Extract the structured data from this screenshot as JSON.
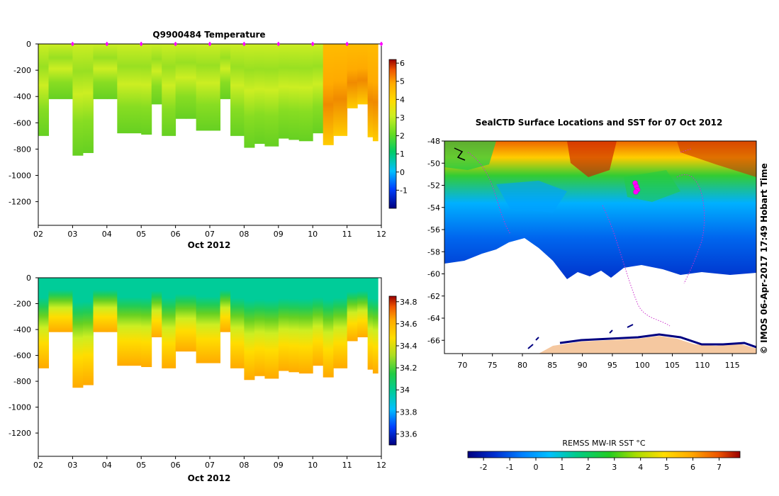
{
  "chart_data": [
    {
      "id": "temperature-section",
      "type": "heatmap",
      "title": "Q9900484  Temperature",
      "xlabel": "Oct 2012",
      "ylabel": "",
      "x_ticks": [
        "02",
        "03",
        "04",
        "05",
        "06",
        "07",
        "08",
        "09",
        "10",
        "11",
        "12"
      ],
      "x_range": [
        2,
        12
      ],
      "y_ticks": [
        0,
        -200,
        -400,
        -600,
        -800,
        -1000,
        -1200
      ],
      "ylim": [
        -1380,
        0
      ],
      "colorbar": {
        "min": -2,
        "max": 6.2,
        "ticks": [
          6,
          5,
          4,
          3,
          2,
          1,
          0,
          -1
        ]
      },
      "profile_days": [
        2.0,
        2.3,
        2.6,
        3.0,
        3.3,
        3.6,
        4.0,
        4.3,
        4.6,
        5.0,
        5.3,
        5.6,
        6.0,
        6.3,
        6.6,
        7.0,
        7.3,
        7.6,
        8.0,
        8.3,
        8.6,
        9.0,
        9.3,
        9.6,
        10.0,
        10.3,
        10.6,
        11.0,
        11.3,
        11.6,
        11.75
      ],
      "profile_max_depth": [
        700,
        420,
        420,
        850,
        830,
        420,
        420,
        680,
        680,
        690,
        460,
        700,
        570,
        570,
        660,
        660,
        420,
        700,
        790,
        760,
        780,
        720,
        730,
        740,
        680,
        770,
        700,
        490,
        460,
        710,
        740
      ],
      "surface_markers_days": [
        3.0,
        4.0,
        5.0,
        6.0,
        7.0,
        8.0,
        9.0,
        10.0,
        11.0,
        12.0
      ]
    },
    {
      "id": "salinity-section",
      "type": "heatmap",
      "title": "",
      "xlabel": "Oct 2012",
      "ylabel": "",
      "x_ticks": [
        "02",
        "03",
        "04",
        "05",
        "06",
        "07",
        "08",
        "09",
        "10",
        "11",
        "12"
      ],
      "x_range": [
        2,
        12
      ],
      "y_ticks": [
        0,
        -200,
        -400,
        -600,
        -800,
        -1000,
        -1200
      ],
      "ylim": [
        -1380,
        0
      ],
      "colorbar": {
        "min": 33.5,
        "max": 34.85,
        "ticks": [
          34.8,
          34.6,
          34.4,
          34.2,
          34,
          33.8,
          33.6
        ]
      },
      "profile_days": [
        2.0,
        2.3,
        2.6,
        3.0,
        3.3,
        3.6,
        4.0,
        4.3,
        4.6,
        5.0,
        5.3,
        5.6,
        6.0,
        6.3,
        6.6,
        7.0,
        7.3,
        7.6,
        8.0,
        8.3,
        8.6,
        9.0,
        9.3,
        9.6,
        10.0,
        10.3,
        10.6,
        11.0,
        11.3,
        11.6,
        11.75
      ],
      "profile_max_depth": [
        700,
        420,
        420,
        850,
        830,
        420,
        420,
        680,
        680,
        690,
        460,
        700,
        570,
        570,
        660,
        660,
        420,
        700,
        790,
        760,
        780,
        720,
        730,
        740,
        680,
        770,
        700,
        490,
        460,
        710,
        740
      ]
    },
    {
      "id": "sst-map",
      "type": "heatmap",
      "title": "SealCTD Surface Locations and SST for 07 Oct 2012",
      "xlabel": "",
      "ylabel": "",
      "x_ticks": [
        70,
        75,
        80,
        85,
        90,
        95,
        100,
        105,
        110,
        115
      ],
      "xlim": [
        67,
        119
      ],
      "y_ticks": [
        -48,
        -50,
        -52,
        -54,
        -56,
        -58,
        -60,
        -62,
        -64,
        -66
      ],
      "ylim": [
        -67.2,
        -48
      ],
      "colorbar": {
        "label": "REMSS MW-IR SST °C",
        "min": -2.6,
        "max": 7.8,
        "ticks": [
          -2,
          -1,
          0,
          1,
          2,
          3,
          4,
          5,
          6,
          7
        ]
      },
      "seal_positions": [
        {
          "lon": 98.8,
          "lat": -51.8
        },
        {
          "lon": 99.0,
          "lat": -52.1
        },
        {
          "lon": 99.2,
          "lat": -52.4
        },
        {
          "lon": 98.9,
          "lat": -52.6
        }
      ],
      "credit": "© IMOS 06-Apr-2017 17:49 Hobart Time"
    }
  ],
  "colors": {
    "temperature_ramp": [
      "#000080",
      "#0040ff",
      "#00c0ff",
      "#00cc66",
      "#66dd22",
      "#ccee22",
      "#ffdd00",
      "#ffaa00",
      "#ee5500",
      "#990000"
    ],
    "salinity_ramp": [
      "#000080",
      "#0040ff",
      "#00c0ff",
      "#00cc99",
      "#22cc44",
      "#aadd22",
      "#ffdd00",
      "#ffaa00",
      "#ee5500",
      "#990000"
    ],
    "sst_ramp": [
      "#000080",
      "#0030d0",
      "#0080ff",
      "#00c0ff",
      "#00cc88",
      "#22cc22",
      "#aadd00",
      "#ffdd00",
      "#ffaa00",
      "#ee5500",
      "#990000"
    ],
    "land": "#f5c8a0",
    "marker": "#ff00ff"
  }
}
